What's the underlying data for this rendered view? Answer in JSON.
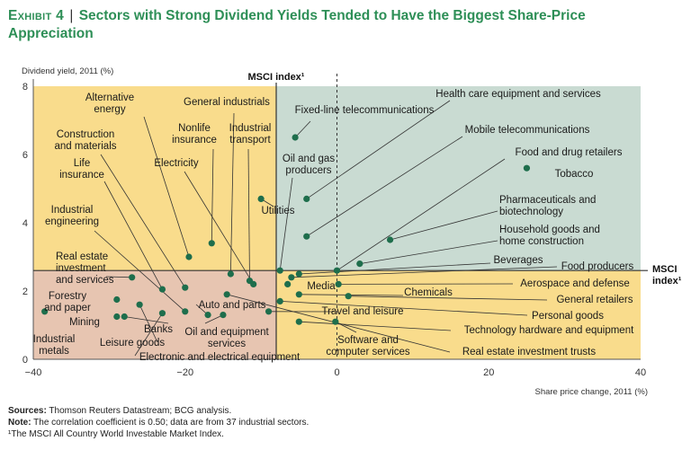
{
  "title": {
    "exhibit": "Exhibit 4",
    "separator": "|",
    "text": "Sectors with Strong Dividend Yields Tended to Have the Biggest Share-Price Appreciation"
  },
  "colors": {
    "quad_top_left": "#f9dc8c",
    "quad_top_right": "#c9dbd2",
    "quad_bottom_left": "#e7c5b1",
    "quad_bottom_right": "#f9dc8c",
    "dot": "#1e6e4c",
    "title": "#2e8f57"
  },
  "chart_data": {
    "type": "scatter",
    "title": "Sectors with Strong Dividend Yields Tended to Have the Biggest Share-Price Appreciation",
    "xlabel": "Share price change, 2011 (%)",
    "ylabel": "Dividend yield, 2011 (%)",
    "xlim": [
      -40,
      40
    ],
    "ylim": [
      0,
      8
    ],
    "x_ticks": [
      -40,
      -20,
      0,
      20,
      40
    ],
    "y_ticks": [
      0,
      2,
      4,
      6,
      8
    ],
    "msci_index": {
      "x": -8,
      "y": 2.6,
      "x_label": "MSCI index¹",
      "y_label": "MSCI index¹"
    },
    "points": [
      {
        "name": "Tobacco",
        "x": 25,
        "y": 5.6
      },
      {
        "name": "Fixed-line telecommunications",
        "x": -5.5,
        "y": 6.5
      },
      {
        "name": "Mobile telecommunications",
        "x": -4,
        "y": 3.6
      },
      {
        "name": "Health care equipment and services",
        "x": -4,
        "y": 4.7
      },
      {
        "name": "Pharmaceuticals and biotechnology",
        "x": 7,
        "y": 3.5
      },
      {
        "name": "Household goods and home construction",
        "x": 3,
        "y": 2.8
      },
      {
        "name": "Food and drug retailers",
        "x": 0,
        "y": 2.6
      },
      {
        "name": "Beverages",
        "x": -5,
        "y": 2.5
      },
      {
        "name": "Food producers",
        "x": -6,
        "y": 2.4
      },
      {
        "name": "Oil and gas producers",
        "x": -7.5,
        "y": 2.6
      },
      {
        "name": "Utilities",
        "x": -10,
        "y": 4.7
      },
      {
        "name": "Media",
        "x": -6.5,
        "y": 2.2
      },
      {
        "name": "Aerospace and defense",
        "x": 0.2,
        "y": 2.2
      },
      {
        "name": "Chemicals",
        "x": -5,
        "y": 1.9
      },
      {
        "name": "General retailers",
        "x": 1.5,
        "y": 1.85
      },
      {
        "name": "Personal goods",
        "x": -7.5,
        "y": 1.7
      },
      {
        "name": "Travel and leisure",
        "x": -9,
        "y": 1.4
      },
      {
        "name": "Technology hardware and equipment",
        "x": -5,
        "y": 1.1
      },
      {
        "name": "Software and computer services",
        "x": -0.2,
        "y": 1.1
      },
      {
        "name": "Real estate investment trusts",
        "x": -14.5,
        "y": 1.9
      },
      {
        "name": "Alternative energy",
        "x": -19.5,
        "y": 3.0
      },
      {
        "name": "General industrials",
        "x": -14,
        "y": 2.5
      },
      {
        "name": "Nonlife insurance",
        "x": -16.5,
        "y": 3.4
      },
      {
        "name": "Industrial transport",
        "x": -11.5,
        "y": 2.3
      },
      {
        "name": "Electricity",
        "x": -11,
        "y": 2.2
      },
      {
        "name": "Construction and materials",
        "x": -20,
        "y": 2.1
      },
      {
        "name": "Life insurance",
        "x": -23,
        "y": 2.05
      },
      {
        "name": "Industrial engineering",
        "x": -20,
        "y": 1.4
      },
      {
        "name": "Real estate investment and services",
        "x": -27,
        "y": 2.4
      },
      {
        "name": "Auto and parts",
        "x": -17,
        "y": 1.3
      },
      {
        "name": "Oil and equipment services",
        "x": -15,
        "y": 1.3
      },
      {
        "name": "Electronic and electrical equipment",
        "x": -23,
        "y": 1.35
      },
      {
        "name": "Forestry and paper",
        "x": -29,
        "y": 1.75
      },
      {
        "name": "Mining",
        "x": -29,
        "y": 1.25
      },
      {
        "name": "Banks",
        "x": -28,
        "y": 1.25
      },
      {
        "name": "Leisure goods",
        "x": -26,
        "y": 1.6
      },
      {
        "name": "Industrial metals",
        "x": -38.5,
        "y": 1.4
      }
    ],
    "labels": [
      {
        "text": "Alternative|energy",
        "anchor": "Alternative energy"
      },
      {
        "text": "General industrials",
        "anchor": "General industrials"
      },
      {
        "text": "Nonlife|insurance",
        "anchor": "Nonlife insurance"
      },
      {
        "text": "Industrial|transport",
        "anchor": "Industrial transport"
      },
      {
        "text": "Construction|and materials",
        "anchor": "Construction and materials"
      },
      {
        "text": "Electricity",
        "anchor": "Electricity"
      },
      {
        "text": "Life|insurance",
        "anchor": "Life insurance"
      },
      {
        "text": "Industrial|engineering",
        "anchor": "Industrial engineering"
      },
      {
        "text": "Real estate|investment|and services",
        "anchor": "Real estate investment and services"
      },
      {
        "text": "Forestry|and paper",
        "anchor": "Forestry and paper"
      },
      {
        "text": "Mining",
        "anchor": "Mining"
      },
      {
        "text": "Industrial|metals",
        "anchor": "Industrial metals"
      },
      {
        "text": "Banks",
        "anchor": "Banks"
      },
      {
        "text": "Leisure goods",
        "anchor": "Leisure goods"
      },
      {
        "text": "Auto and parts",
        "anchor": "Auto and parts"
      },
      {
        "text": "Oil and equipment|services",
        "anchor": "Oil and equipment services"
      },
      {
        "text": "Electronic and electrical equipment",
        "anchor": "Electronic and electrical equipment"
      },
      {
        "text": "Utilities",
        "anchor": "Utilities"
      },
      {
        "text": "Oil and gas|producers",
        "anchor": "Oil and gas producers"
      },
      {
        "text": "Fixed-line telecommunications",
        "anchor": "Fixed-line telecommunications"
      },
      {
        "text": "Health care equipment and services",
        "anchor": "Health care equipment and services"
      },
      {
        "text": "Mobile telecommunications",
        "anchor": "Mobile telecommunications"
      },
      {
        "text": "Food and drug retailers",
        "anchor": "Food and drug retailers"
      },
      {
        "text": "Tobacco",
        "anchor": "Tobacco"
      },
      {
        "text": "Pharmaceuticals and|biotechnology",
        "anchor": "Pharmaceuticals and biotechnology"
      },
      {
        "text": "Household goods and|home construction",
        "anchor": "Household goods and home construction"
      },
      {
        "text": "Beverages",
        "anchor": "Beverages"
      },
      {
        "text": "Food producers",
        "anchor": "Food producers"
      },
      {
        "text": "Media",
        "anchor": "Media"
      },
      {
        "text": "Aerospace and defense",
        "anchor": "Aerospace and defense"
      },
      {
        "text": "Chemicals",
        "anchor": "Chemicals"
      },
      {
        "text": "General retailers",
        "anchor": "General retailers"
      },
      {
        "text": "Personal goods",
        "anchor": "Personal goods"
      },
      {
        "text": "Travel and leisure",
        "anchor": "Travel and leisure"
      },
      {
        "text": "Technology hardware and equipment",
        "anchor": "Technology hardware and equipment"
      },
      {
        "text": "Software and|computer services",
        "anchor": "Software and computer services"
      },
      {
        "text": "Real estate investment trusts",
        "anchor": "Real estate investment trusts"
      }
    ]
  },
  "footer": {
    "sources_label": "Sources:",
    "sources_text": "Thomson Reuters Datastream; BCG analysis.",
    "note_label": "Note:",
    "note_text": "The correlation coefficient is 0.50; data are from 37 industrial sectors.",
    "footnote": "¹The MSCI All Country World Investable Market Index."
  }
}
